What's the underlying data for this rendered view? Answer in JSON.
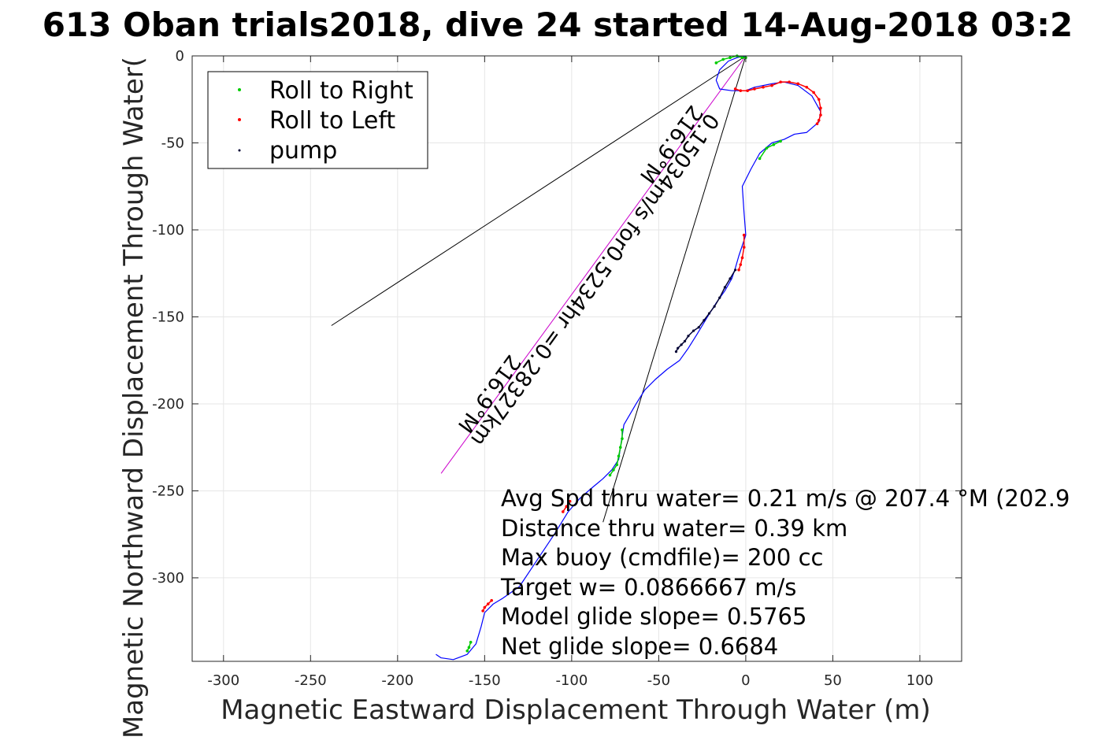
{
  "chart_data": {
    "type": "scatter",
    "title": "613 Oban trials2018, dive 24 started 14-Aug-2018 03:2",
    "xlabel": "Magnetic Eastward Displacement Through Water (m)",
    "ylabel": "Magnetic Northward Displacement Through Water(",
    "xlim": [
      -318,
      124
    ],
    "ylim": [
      -348,
      0
    ],
    "x_ticks": [
      -300,
      -250,
      -200,
      -150,
      -100,
      -50,
      0,
      50,
      100
    ],
    "x_tick_labels": [
      "-300",
      "-250",
      "-200",
      "-150",
      "-100",
      "-50",
      "0",
      "50",
      "100"
    ],
    "y_ticks": [
      0,
      -50,
      -100,
      -150,
      -200,
      -250,
      -300
    ],
    "y_tick_labels": [
      "0",
      "-50",
      "-100",
      "-150",
      "-200",
      "-250",
      "-300"
    ],
    "grid": true,
    "legend": {
      "position": "top-left",
      "entries": [
        "Roll to Right",
        "Roll to Left",
        "pump"
      ]
    },
    "colors": {
      "track": "#0000ff",
      "roll_right": "#00cc00",
      "roll_left": "#ff0000",
      "pump": "#000033",
      "current": "#cc00cc",
      "axes": "#262626",
      "grid": "#e6e6e6"
    },
    "track": {
      "x": [
        0,
        -5,
        -10,
        -15,
        -17,
        -15,
        -8,
        0,
        5,
        15,
        22,
        30,
        38,
        43,
        42,
        35,
        28,
        22,
        15,
        8,
        3,
        -2,
        -1,
        0,
        -4,
        -6,
        -8,
        -12,
        -17,
        -22,
        -28,
        -33,
        -38,
        -45,
        -52,
        -58,
        -63,
        -70,
        -72,
        -73,
        -77,
        -82,
        -88,
        -95,
        -102,
        -110,
        -120,
        -130,
        -140,
        -145,
        -150,
        -152,
        -155,
        -160,
        -168,
        -175,
        -178
      ],
      "y": [
        0,
        -1,
        -3,
        -8,
        -14,
        -19,
        -20,
        -20,
        -18,
        -16,
        -15,
        -17,
        -23,
        -32,
        -38,
        -44,
        -45,
        -48,
        -50,
        -56,
        -65,
        -75,
        -90,
        -103,
        -115,
        -122,
        -128,
        -135,
        -142,
        -150,
        -160,
        -168,
        -175,
        -180,
        -186,
        -192,
        -200,
        -212,
        -225,
        -232,
        -238,
        -243,
        -248,
        -254,
        -262,
        -275,
        -290,
        -305,
        -312,
        -315,
        -320,
        -328,
        -338,
        -344,
        -347,
        -346,
        -344
      ]
    },
    "roll_right_segments": [
      {
        "x": [
          -17,
          -13,
          -9,
          -5,
          -2,
          0
        ],
        "y": [
          -4,
          -2,
          -1,
          0,
          -1,
          -1
        ]
      },
      {
        "x": [
          8,
          12,
          16,
          20
        ],
        "y": [
          -59,
          -53,
          -51,
          -49
        ]
      },
      {
        "x": [
          -71,
          -71,
          -72,
          -73,
          -74,
          -76,
          -78
        ],
        "y": [
          -215,
          -220,
          -225,
          -230,
          -235,
          -238,
          -241
        ]
      },
      {
        "x": [
          -160,
          -159,
          -158
        ],
        "y": [
          -342,
          -340,
          -337
        ]
      }
    ],
    "roll_left_segments": [
      {
        "x": [
          -6,
          -3,
          1,
          5,
          10,
          15,
          20,
          25,
          30,
          35,
          39,
          42,
          43,
          43,
          42,
          41
        ],
        "y": [
          -19,
          -20,
          -20,
          -19,
          -18,
          -17,
          -15,
          -15,
          -16,
          -18,
          -21,
          -25,
          -30,
          -34,
          -37,
          -39
        ]
      },
      {
        "x": [
          -1,
          -1,
          -2,
          -3,
          -4
        ],
        "y": [
          -103,
          -110,
          -116,
          -120,
          -123
        ]
      },
      {
        "x": [
          -101,
          -103,
          -105
        ],
        "y": [
          -256,
          -259,
          -262
        ]
      },
      {
        "x": [
          -146,
          -148,
          -150,
          -151
        ],
        "y": [
          -313,
          -315,
          -317,
          -319
        ]
      }
    ],
    "pump_segments": [
      {
        "x": [
          -6,
          -9,
          -12,
          -15,
          -18,
          -21,
          -24,
          -27,
          -30,
          -33,
          -35,
          -37,
          -39,
          -40
        ],
        "y": [
          -123,
          -128,
          -133,
          -139,
          -144,
          -148,
          -152,
          -156,
          -158,
          -161,
          -164,
          -166,
          -168,
          -170
        ]
      }
    ],
    "lines": [
      {
        "name": "current",
        "x": [
          0,
          -238
        ],
        "y": [
          0,
          -155
        ]
      },
      {
        "name": "heading",
        "x": [
          0,
          -82
        ],
        "y": [
          0,
          -268
        ]
      },
      {
        "name": "current-vector",
        "x": [
          0,
          -175
        ],
        "y": [
          0,
          -240
        ]
      }
    ],
    "rotated_labels": [
      "216.9°M",
      "0.15034m/s for0.5234hr =0.28327km",
      "216.9°M"
    ],
    "annotations": [
      "Avg Spd thru water=  0.21 m/s @ 207.4 °M (202.9",
      "Distance thru water=  0.39 km",
      "Max buoy (cmdfile)= 200 cc",
      "Target w= 0.0866667 m/s",
      "Model glide slope= 0.5765",
      "Net glide slope= 0.6684"
    ]
  }
}
